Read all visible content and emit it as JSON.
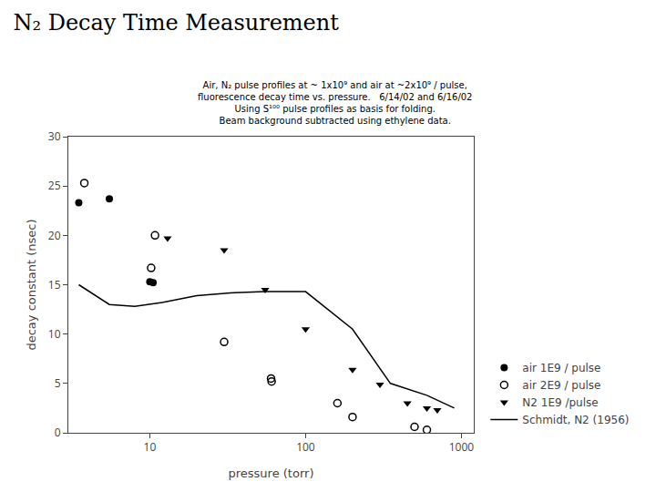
{
  "chart_data": {
    "type": "scatter",
    "title": "N₂ Decay Time Measurement",
    "xlabel": "pressure (torr)",
    "ylabel": "decay constant (nsec)",
    "annotations": [
      "Air, N₂ pulse profiles at ~ 1x10⁹ and air at ~2x10⁹ / pulse,",
      "fluorescence decay time vs. pressure.   6/14/02 and 6/16/02",
      "Using S¹⁰⁰ pulse profiles as basis for folding.",
      "Beam background subtracted using ethylene data."
    ],
    "log": "x",
    "xlim": [
      3,
      1200
    ],
    "xticks": [
      10,
      100,
      1000
    ],
    "ylim": [
      0,
      30
    ],
    "yticks": [
      0,
      5,
      10,
      15,
      20,
      25,
      30
    ],
    "grid": false,
    "legend": "lower right",
    "series": [
      {
        "name": "air 1E9 / pulse",
        "type": "scatter",
        "marker": "circle",
        "color": "#000000",
        "x": [
          3.5,
          5.5,
          10.0,
          10.5
        ],
        "y": [
          23.3,
          23.7,
          15.3,
          15.2
        ]
      },
      {
        "name": "air 2E9 / pulse",
        "type": "scatter",
        "marker": "circle-open",
        "color": "#000000",
        "x": [
          3.8,
          10.2,
          10.8,
          30.0,
          60.0,
          60.5,
          160.0,
          200.0,
          500.0,
          600.0
        ],
        "y": [
          25.3,
          16.7,
          20.0,
          9.2,
          5.5,
          5.2,
          3.0,
          1.6,
          0.6,
          0.3
        ]
      },
      {
        "name": "N2 1E9 /pulse",
        "type": "scatter",
        "marker": "triangle-down",
        "color": "#000000",
        "x": [
          13.0,
          30.0,
          55.0,
          100.0,
          200.0,
          300.0,
          450.0,
          600.0,
          700.0
        ],
        "y": [
          19.7,
          18.5,
          14.5,
          10.5,
          6.4,
          4.9,
          3.0,
          2.5,
          2.3
        ]
      },
      {
        "name": "Schmidt, N2 (1956)",
        "type": "line",
        "line_style": "solid",
        "color": "#000000",
        "x": [
          3.5,
          5.5,
          8.0,
          12.0,
          20.0,
          35.0,
          55.0,
          100.0,
          200.0,
          350.0,
          600.0,
          900.0
        ],
        "y": [
          15.0,
          13.0,
          12.8,
          13.2,
          13.9,
          14.2,
          14.3,
          14.3,
          10.5,
          5.0,
          3.8,
          2.5
        ]
      }
    ]
  }
}
